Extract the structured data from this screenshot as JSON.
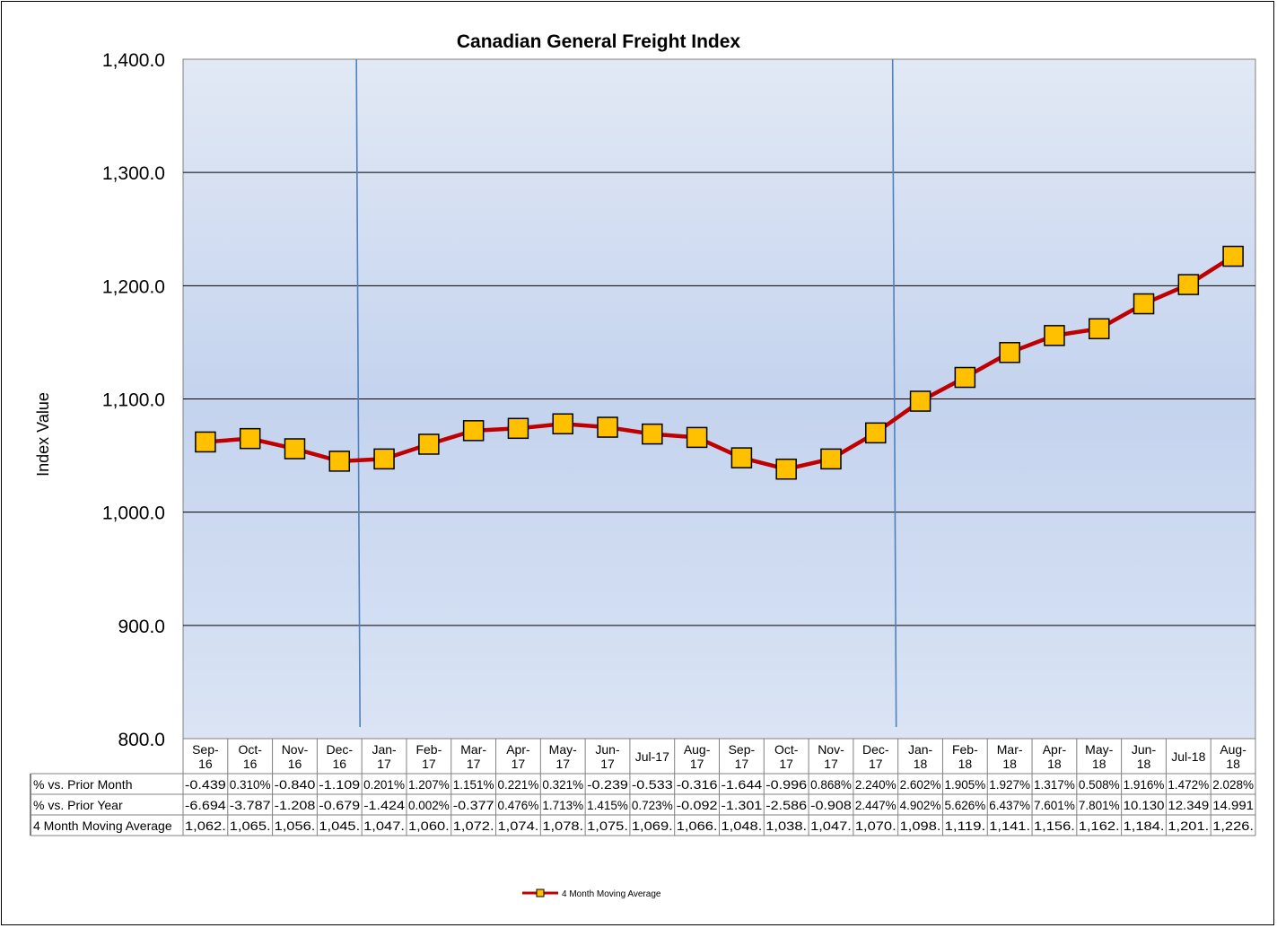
{
  "chart_data": {
    "type": "line",
    "title": "Canadian General Freight Index",
    "ylabel": "Index Value",
    "ylim": [
      800,
      1400
    ],
    "yticks": [
      "1,400.0",
      "1,300.0",
      "1,200.0",
      "1,100.0",
      "1,000.0",
      "900.0",
      "800.0"
    ],
    "grid": true,
    "legend_position": "bottom-center",
    "reference_lines_at": [
      "Dec-16",
      "Dec-17"
    ],
    "categories": [
      [
        "Sep-",
        "16"
      ],
      [
        "Oct-",
        "16"
      ],
      [
        "Nov-",
        "16"
      ],
      [
        "Dec-",
        "16"
      ],
      [
        "Jan-",
        "17"
      ],
      [
        "Feb-",
        "17"
      ],
      [
        "Mar-",
        "17"
      ],
      [
        "Apr-",
        "17"
      ],
      [
        "May-",
        "17"
      ],
      [
        "Jun-",
        "17"
      ],
      [
        "Jul-17"
      ],
      [
        "Aug-",
        "17"
      ],
      [
        "Sep-",
        "17"
      ],
      [
        "Oct-",
        "17"
      ],
      [
        "Nov-",
        "17"
      ],
      [
        "Dec-",
        "17"
      ],
      [
        "Jan-",
        "18"
      ],
      [
        "Feb-",
        "18"
      ],
      [
        "Mar-",
        "18"
      ],
      [
        "Apr-",
        "18"
      ],
      [
        "May-",
        "18"
      ],
      [
        "Jun-",
        "18"
      ],
      [
        "Jul-18"
      ],
      [
        "Aug-",
        "18"
      ]
    ],
    "series": [
      {
        "name": "4 Month Moving Average",
        "color": "#c00000",
        "marker_color": "#ffc000",
        "values": [
          1062,
          1065,
          1056,
          1045,
          1047,
          1060,
          1072,
          1074,
          1078,
          1075,
          1069,
          1066,
          1048,
          1038,
          1047,
          1070,
          1098,
          1119,
          1141,
          1156,
          1162,
          1184,
          1201,
          1226
        ]
      }
    ],
    "table": {
      "rows": [
        {
          "label": "% vs. Prior Month",
          "cells": [
            "-0.439",
            "0.310%",
            "-0.840",
            "-1.109",
            "0.201%",
            "1.207%",
            "1.151%",
            "0.221%",
            "0.321%",
            "-0.239",
            "-0.533",
            "-0.316",
            "-1.644",
            "-0.996",
            "0.868%",
            "2.240%",
            "2.602%",
            "1.905%",
            "1.927%",
            "1.317%",
            "0.508%",
            "1.916%",
            "1.472%",
            "2.028%"
          ]
        },
        {
          "label": "% vs. Prior Year",
          "cells": [
            "-6.694",
            "-3.787",
            "-1.208",
            "-0.679",
            "-1.424",
            "0.002%",
            "-0.377",
            "0.476%",
            "1.713%",
            "1.415%",
            "0.723%",
            "-0.092",
            "-1.301",
            "-2.586",
            "-0.908",
            "2.447%",
            "4.902%",
            "5.626%",
            "6.437%",
            "7.601%",
            "7.801%",
            "10.130",
            "12.349",
            "14.991"
          ]
        },
        {
          "label": "4 Month Moving Average",
          "cells": [
            "1,062.",
            "1,065.",
            "1,056.",
            "1,045.",
            "1,047.",
            "1,060.",
            "1,072.",
            "1,074.",
            "1,078.",
            "1,075.",
            "1,069.",
            "1,066.",
            "1,048.",
            "1,038.",
            "1,047.",
            "1,070.",
            "1,098.",
            "1,119.",
            "1,141.",
            "1,156.",
            "1,162.",
            "1,184.",
            "1,201.",
            "1,226."
          ]
        }
      ]
    }
  }
}
